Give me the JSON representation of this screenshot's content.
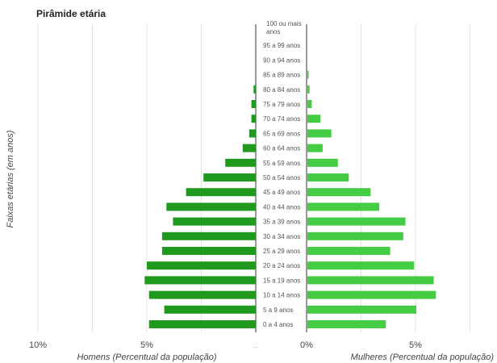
{
  "chart_data": {
    "type": "bar",
    "orientation": "horizontal-pyramid",
    "title": "Pirâmide etária",
    "ylabel": "Faixas etárias (em anos)",
    "left_xlabel": "Homens (Percentual da população)",
    "right_xlabel": "Mulheres (Percentual da população)",
    "grid": true,
    "left_xlim": [
      0,
      10
    ],
    "right_xlim": [
      0,
      7.5
    ],
    "left_ticks": [
      "10%",
      "5%"
    ],
    "right_ticks": [
      "0%",
      "5%"
    ],
    "center_tick": "..",
    "categories": [
      "0 a 4 anos",
      "5 a 9 anos",
      "10 a 14 anos",
      "15 a 19 anos",
      "20 a 24 anos",
      "25 a 29 anos",
      "30 a 34 anos",
      "35 a 39 anos",
      "40 a 44 anos",
      "45 a 49 anos",
      "50 a 54 anos",
      "55 a 59 anos",
      "60 a 64 anos",
      "65 a 69 anos",
      "70 a 74 anos",
      "75 a 79 anos",
      "80 a 84 anos",
      "85 a 89 anos",
      "90 a 94 anos",
      "95 a 99 anos",
      "100 ou mais anos"
    ],
    "series": [
      {
        "name": "Homens",
        "color": "#1f9a1f",
        "values": [
          4.9,
          4.2,
          4.9,
          5.1,
          5.0,
          4.3,
          4.3,
          3.8,
          4.1,
          3.2,
          2.4,
          1.4,
          0.6,
          0.3,
          0.2,
          0.2,
          0.1,
          0.0,
          0.0,
          0.0,
          0.0
        ]
      },
      {
        "name": "Mulheres",
        "color": "#44cc44",
        "values": [
          3.6,
          5.0,
          5.9,
          5.8,
          4.9,
          3.8,
          4.4,
          4.5,
          3.3,
          2.9,
          1.9,
          1.4,
          0.7,
          1.1,
          0.6,
          0.2,
          0.1,
          0.05,
          0.0,
          0.0,
          0.0
        ]
      }
    ]
  }
}
